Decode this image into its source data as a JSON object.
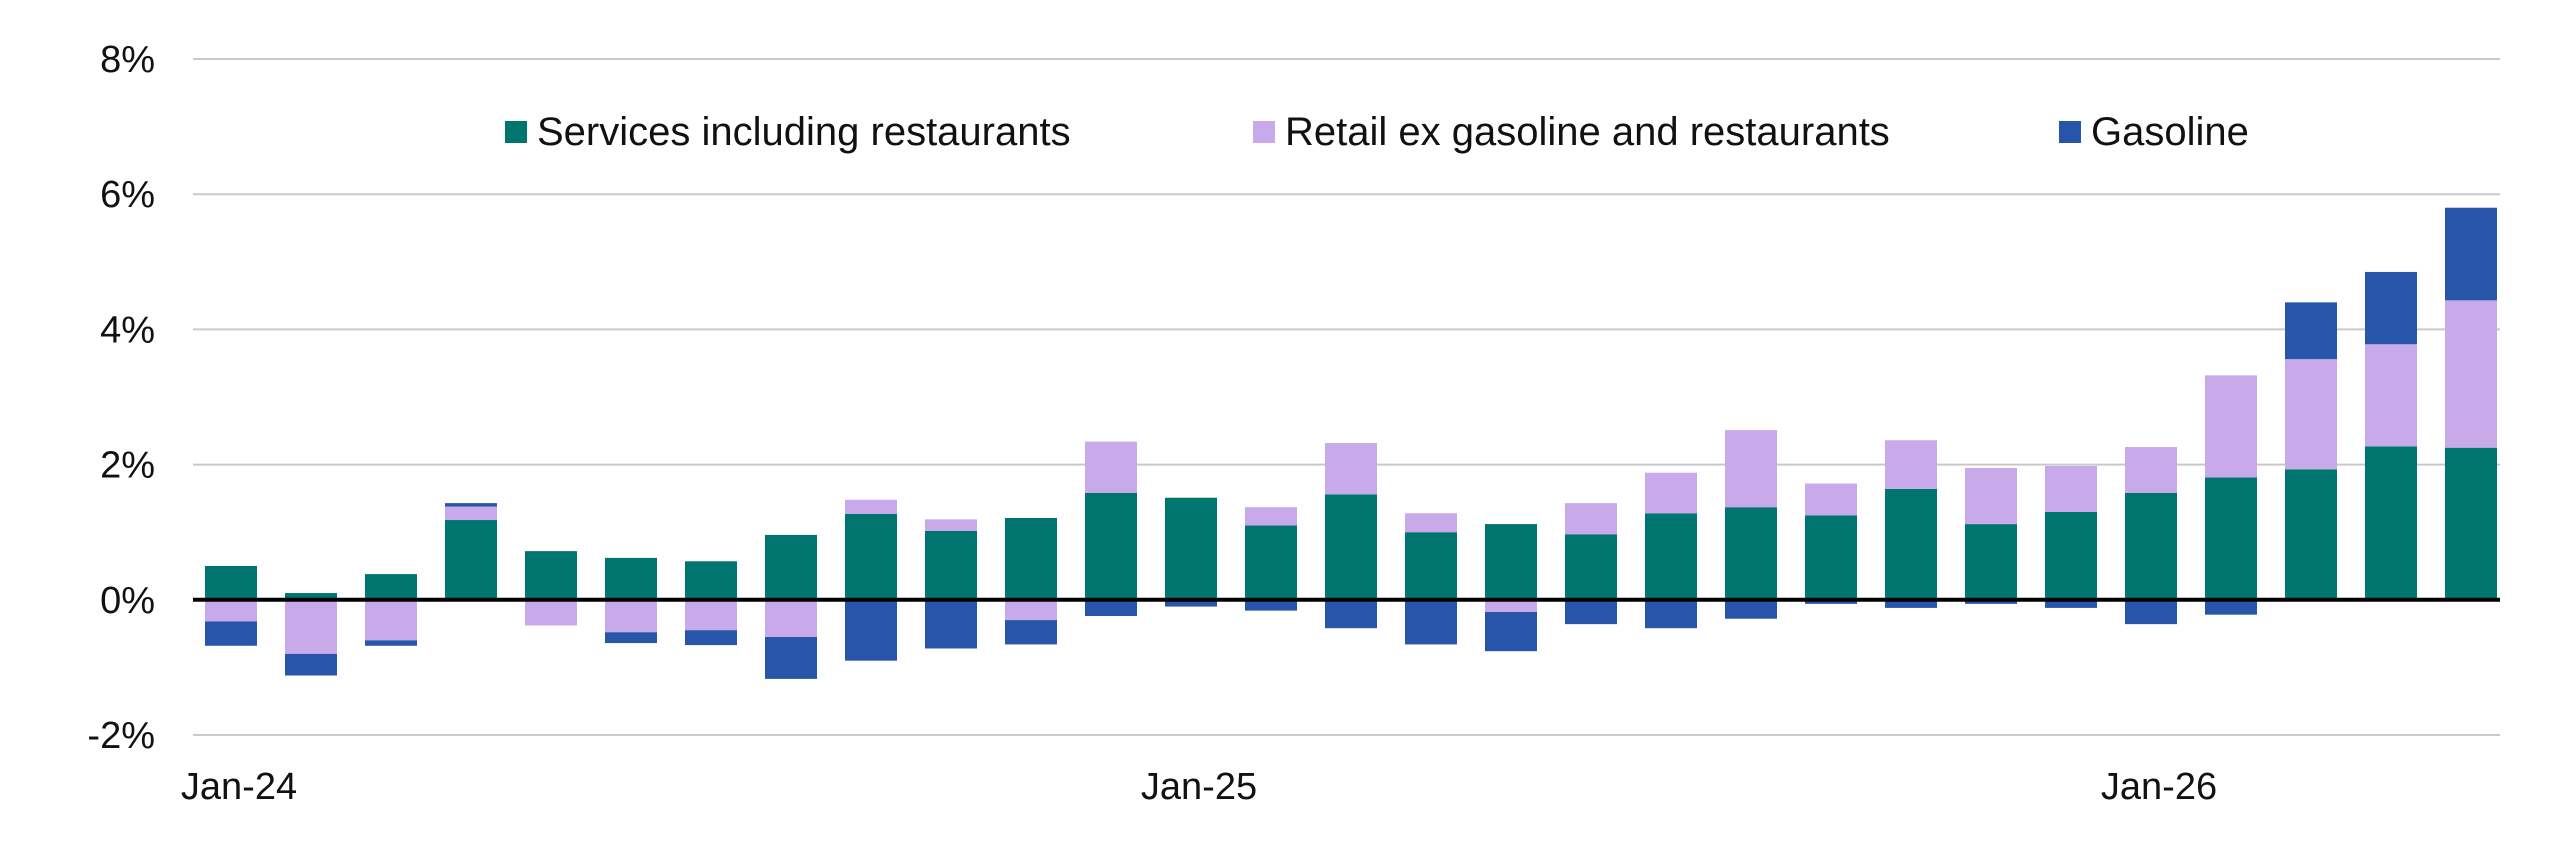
{
  "chart_data": {
    "type": "bar",
    "stacked": true,
    "categories": [
      "Jan-24",
      "Feb-24",
      "Mar-24",
      "Apr-24",
      "May-24",
      "Jun-24",
      "Jul-24",
      "Aug-24",
      "Sep-24",
      "Oct-24",
      "Nov-24",
      "Dec-24",
      "Jan-25",
      "Feb-25",
      "Mar-25",
      "Apr-25",
      "May-25",
      "Jun-25",
      "Jul-25",
      "Aug-25",
      "Sep-25",
      "Oct-25",
      "Nov-25",
      "Dec-25",
      "Jan-26",
      "Feb-26",
      "Mar-26",
      "Apr-26",
      "May-26"
    ],
    "x_tick_labels": [
      "Jan-24",
      "Jan-25",
      "Jan-26"
    ],
    "y_tick_labels": [
      "8%",
      "6%",
      "4%",
      "2%",
      "0%",
      "-2%"
    ],
    "y_ticks": [
      8,
      6,
      4,
      2,
      0,
      -2
    ],
    "ylim": [
      -2,
      8
    ],
    "grid": true,
    "legend_position": "top",
    "title": "",
    "xlabel": "",
    "ylabel": "",
    "series": [
      {
        "name": "Services including restaurants",
        "color": "#00756f",
        "values": [
          0.5,
          0.1,
          0.38,
          1.18,
          0.72,
          0.62,
          0.57,
          0.96,
          1.27,
          1.02,
          1.21,
          1.58,
          1.51,
          1.1,
          1.56,
          1.0,
          1.12,
          0.97,
          1.28,
          1.37,
          1.25,
          1.64,
          1.12,
          1.3,
          1.58,
          1.81,
          1.93,
          2.27,
          2.25
        ]
      },
      {
        "name": "Retail ex gasoline and restaurants",
        "color": "#c8a9ea",
        "values": [
          -0.32,
          -0.8,
          -0.6,
          0.2,
          -0.38,
          -0.48,
          -0.45,
          -0.55,
          0.21,
          0.17,
          -0.3,
          0.76,
          0.0,
          0.27,
          0.76,
          0.28,
          -0.18,
          0.46,
          0.6,
          1.14,
          0.47,
          0.72,
          0.83,
          0.68,
          0.68,
          1.51,
          1.63,
          1.51,
          2.18
        ]
      },
      {
        "name": "Gasoline",
        "color": "#2655a9",
        "values": [
          -0.36,
          -0.32,
          -0.08,
          0.05,
          0.0,
          -0.16,
          -0.22,
          -0.62,
          -0.9,
          -0.72,
          -0.36,
          -0.24,
          -0.1,
          -0.16,
          -0.42,
          -0.66,
          -0.58,
          -0.36,
          -0.42,
          -0.28,
          -0.06,
          -0.12,
          -0.06,
          -0.12,
          -0.36,
          -0.22,
          0.84,
          1.07,
          1.37
        ]
      }
    ]
  }
}
